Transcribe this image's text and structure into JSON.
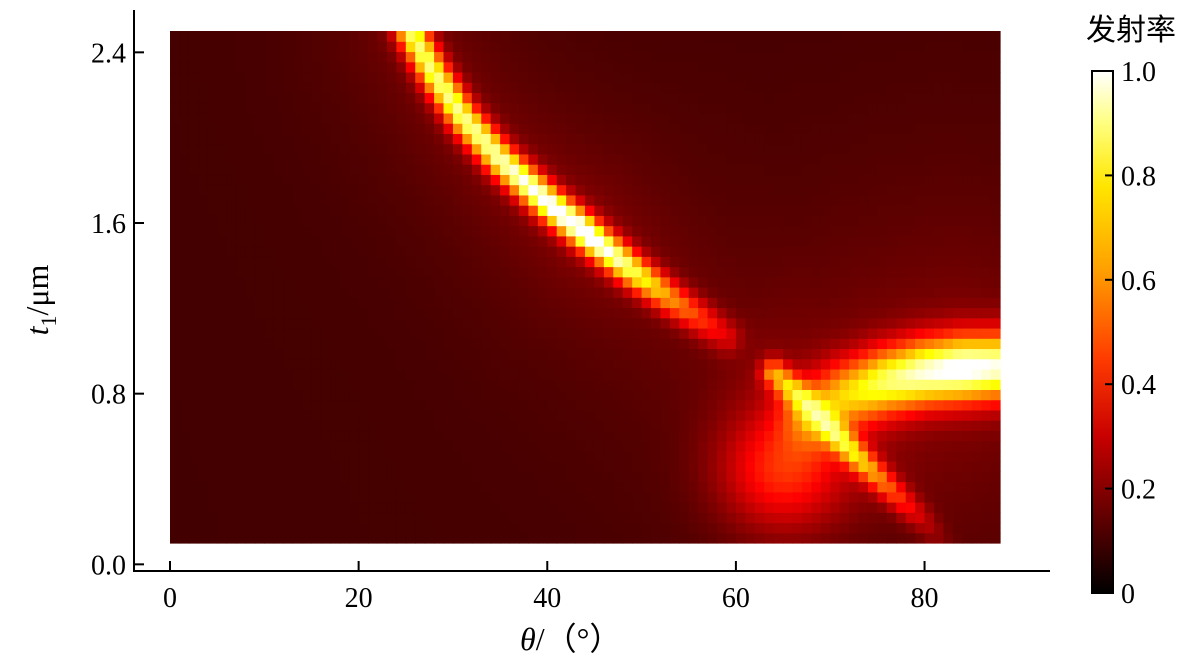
{
  "chart_data": {
    "type": "heatmap",
    "colormap": "hot",
    "x": {
      "label_symbol": "θ",
      "label_unit": "/（°）",
      "ticks": [
        0,
        20,
        40,
        60,
        80
      ],
      "tick_labels": [
        "0",
        "20",
        "40",
        "60",
        "80"
      ],
      "range": [
        0,
        88
      ],
      "axis_range": [
        -2,
        93
      ]
    },
    "y": {
      "label_symbol": "t",
      "label_subscript": "1",
      "label_unit": "/μm",
      "ticks": [
        0.0,
        0.8,
        1.6,
        2.4
      ],
      "tick_labels": [
        "0.0",
        "0.8",
        "1.6",
        "2.4"
      ],
      "range": [
        0.1,
        2.5
      ],
      "axis_range": [
        -0.05,
        2.6
      ]
    },
    "colorbar": {
      "title": "发射率",
      "range": [
        0,
        1
      ],
      "ticks": [
        0,
        0.2,
        0.4,
        0.6,
        0.8,
        1.0
      ],
      "tick_labels": [
        "0",
        "0.2",
        "0.4",
        "0.6",
        "0.8",
        "1.0"
      ]
    },
    "features": [
      {
        "name": "upper-resonance-band",
        "points": [
          [
            25.5,
            2.5
          ],
          [
            28,
            2.3
          ],
          [
            31,
            2.1
          ],
          [
            35,
            1.9
          ],
          [
            40,
            1.7
          ],
          [
            44.5,
            1.54
          ],
          [
            49,
            1.38
          ],
          [
            53,
            1.25
          ],
          [
            59,
            1.07
          ]
        ],
        "peak": [
          [
            25.5,
            0.75
          ],
          [
            34,
            0.8
          ],
          [
            44,
            0.98
          ],
          [
            48,
            0.8
          ],
          [
            53,
            0.5
          ],
          [
            59,
            0.2
          ]
        ],
        "width": 1.1
      },
      {
        "name": "lower-resonance-line",
        "points": [
          [
            64,
            0.9
          ],
          [
            67,
            0.78
          ],
          [
            70,
            0.64
          ],
          [
            73,
            0.5
          ],
          [
            76,
            0.37
          ],
          [
            80,
            0.2
          ],
          [
            82,
            0.1
          ]
        ],
        "peak": [
          [
            64,
            0.5
          ],
          [
            68,
            0.72
          ],
          [
            70,
            0.75
          ],
          [
            73,
            0.6
          ],
          [
            76,
            0.4
          ],
          [
            80,
            0.15
          ],
          [
            82,
            0.05
          ]
        ],
        "width": 0.9
      },
      {
        "name": "horizontal-branch",
        "points": [
          [
            68,
            0.7
          ],
          [
            72,
            0.8
          ],
          [
            76,
            0.86
          ],
          [
            80,
            0.9
          ],
          [
            84,
            0.92
          ],
          [
            88,
            0.93
          ]
        ],
        "peak": [
          [
            68,
            0.45
          ],
          [
            72,
            0.6
          ],
          [
            76,
            0.75
          ],
          [
            80,
            0.85
          ],
          [
            84,
            0.92
          ],
          [
            88,
            0.85
          ]
        ],
        "width": 2.2
      },
      {
        "name": "broad-glow",
        "center": [
          65,
          0.45
        ],
        "spread": [
          6.5,
          0.28
        ],
        "peak": 0.35
      }
    ]
  }
}
